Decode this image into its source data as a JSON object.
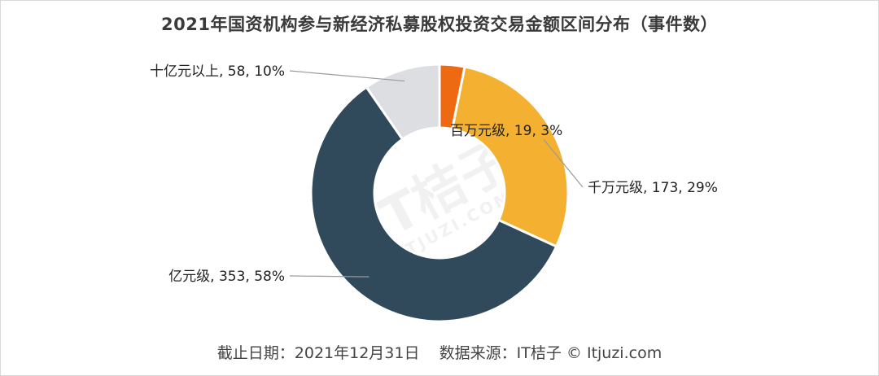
{
  "title": "2021年国资机构参与新经济私募股权投资交易金额区间分布（事件数）",
  "footer": {
    "date": "截止日期：2021年12月31日",
    "source": "数据来源：IT桔子 © Itjuzi.com"
  },
  "watermark": {
    "main": "IT桔子",
    "sub": "ITJUZI.COM"
  },
  "chart_data": {
    "type": "pie",
    "donut": true,
    "title": "2021年国资机构参与新经济私募股权投资交易金额区间分布（事件数）",
    "slices": [
      {
        "name": "百万元级",
        "value": 19,
        "percent": 3,
        "label": "百万元级, 19, 3%",
        "color": "#ee6a12"
      },
      {
        "name": "千万元级",
        "value": 173,
        "percent": 29,
        "label": "千万元级, 173, 29%",
        "color": "#f3b031"
      },
      {
        "name": "亿元级",
        "value": 353,
        "percent": 58,
        "label": "亿元级, 353, 58%",
        "color": "#304a5c"
      },
      {
        "name": "十亿元以上",
        "value": 58,
        "percent": 10,
        "label": "十亿元以上, 58, 10%",
        "color": "#dcdee2"
      }
    ]
  }
}
